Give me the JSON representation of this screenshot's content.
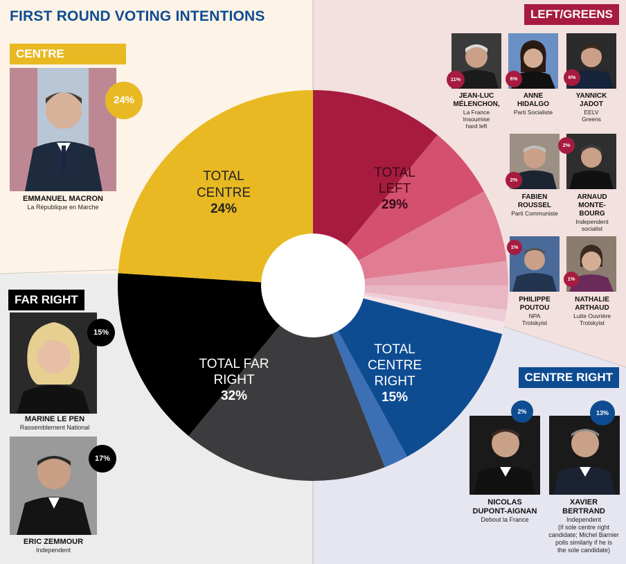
{
  "title": "FIRST ROUND VOTING INTENTIONS",
  "groups": {
    "centre": "CENTRE",
    "far_right": "FAR RIGHT",
    "left": "LEFT/GREENS",
    "centre_right": "CENTRE RIGHT"
  },
  "totals": {
    "centre": {
      "l1": "TOTAL",
      "l2": "CENTRE",
      "pct": "24%"
    },
    "left": {
      "l1": "TOTAL",
      "l2": "LEFT",
      "pct": "29%"
    },
    "centre_right": {
      "l1": "TOTAL",
      "l2": "CENTRE",
      "l3": "RIGHT",
      "pct": "15%"
    },
    "far_right": {
      "l1": "TOTAL FAR",
      "l2": "RIGHT",
      "pct": "32%"
    }
  },
  "candidates": {
    "macron": {
      "name": "EMMANUEL MACRON",
      "party": "La République en Marche",
      "pct": "24%"
    },
    "lepen": {
      "name": "MARINE LE PEN",
      "party": "Rassemblement National",
      "pct": "15%"
    },
    "zemmour": {
      "name": "ERIC ZEMMOUR",
      "party": "Independent",
      "pct": "17%"
    },
    "melenchon": {
      "name1": "JEAN-LUC",
      "name2": "MÉLENCHON,",
      "p1": "La France",
      "p2": "Insoumise",
      "p3": "hard left",
      "pct": "11%"
    },
    "hidalgo": {
      "name1": "ANNE",
      "name2": "HIDALGO",
      "p1": "Parti Socialiste",
      "pct": "6%"
    },
    "jadot": {
      "name1": "YANNICK",
      "name2": "JADOT",
      "p1": "EELV",
      "p2": "Greens",
      "pct": "6%"
    },
    "roussel": {
      "name1": "FABIEN",
      "name2": "ROUSSEL",
      "p1": "Parti Communiste",
      "pct": "2%"
    },
    "montebourg": {
      "name1": "ARNAUD",
      "name2": "MONTE-",
      "name3": "BOURG",
      "p1": "Independent",
      "p2": "socialist",
      "pct": "2%"
    },
    "poutou": {
      "name1": "PHILIPPE",
      "name2": "POUTOU",
      "p1": "NPA",
      "p2": "Trotskyist",
      "pct": "1%"
    },
    "arthaud": {
      "name1": "NATHALIE",
      "name2": "ARTHAUD",
      "p1": "Lutte Ouvrière",
      "p2": "Trotskyist",
      "pct": "1%"
    },
    "dupont": {
      "name1": "NICOLAS",
      "name2": "DUPONT-AIGNAN",
      "p1": "Debout la France",
      "pct": "2%"
    },
    "bertrand": {
      "name1": "XAVIER",
      "name2": "BERTRAND",
      "p1": "Independent",
      "p2": "(if sole centre right",
      "p3": "candidate; Michel Barnier",
      "p4": "polls similarly if he is",
      "p5": "the sole candidate)",
      "pct": "13%"
    }
  },
  "colors": {
    "centre": "#e8b923",
    "far_right_a": "#000000",
    "far_right_b": "#3c3c3e",
    "left_main": "#a61b3f",
    "centre_right_main": "#0e4c92",
    "centre_right_light": "#3c6fb4"
  },
  "chart_data": {
    "type": "pie",
    "donut": true,
    "title": "FIRST ROUND VOTING INTENTIONS",
    "start": "12 o'clock, clockwise",
    "slices": [
      {
        "name": "Mélenchon",
        "value": 11,
        "color": "#a61b3f"
      },
      {
        "name": "Hidalgo",
        "value": 6,
        "color": "#d4506e"
      },
      {
        "name": "Jadot",
        "value": 6,
        "color": "#e07d93"
      },
      {
        "name": "Roussel",
        "value": 2,
        "color": "#e4a3b3"
      },
      {
        "name": "Montebourg",
        "value": 2,
        "color": "#e9b6c3"
      },
      {
        "name": "Poutou",
        "value": 1,
        "color": "#efcdd6"
      },
      {
        "name": "Arthaud",
        "value": 1,
        "color": "#f3e4e8"
      },
      {
        "name": "Bertrand",
        "value": 13,
        "color": "#0e4c92"
      },
      {
        "name": "Dupont-Aignan",
        "value": 2,
        "color": "#3c6fb4"
      },
      {
        "name": "Zemmour",
        "value": 17,
        "color": "#3c3c3e"
      },
      {
        "name": "Le Pen",
        "value": 15,
        "color": "#000000"
      },
      {
        "name": "Macron",
        "value": 24,
        "color": "#e8b923"
      }
    ],
    "group_totals": [
      {
        "group": "Left",
        "value": 29
      },
      {
        "group": "Centre right",
        "value": 15
      },
      {
        "group": "Far right",
        "value": 32
      },
      {
        "group": "Centre",
        "value": 24
      }
    ]
  }
}
